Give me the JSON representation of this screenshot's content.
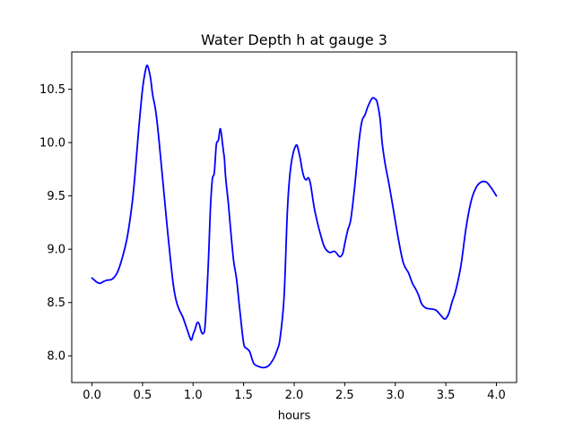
{
  "chart_data": {
    "type": "line",
    "title": "Water Depth h at gauge 3",
    "xlabel": "hours",
    "ylabel": "",
    "xlim": [
      -0.2,
      4.2
    ],
    "ylim": [
      7.75,
      10.85
    ],
    "xticks": [
      0.0,
      0.5,
      1.0,
      1.5,
      2.0,
      2.5,
      3.0,
      3.5,
      4.0
    ],
    "xtick_labels": [
      "0.0",
      "0.5",
      "1.0",
      "1.5",
      "2.0",
      "2.5",
      "3.0",
      "3.5",
      "4.0"
    ],
    "yticks": [
      8.0,
      8.5,
      9.0,
      9.5,
      10.0,
      10.5
    ],
    "ytick_labels": [
      "8.0",
      "8.5",
      "9.0",
      "9.5",
      "10.0",
      "10.5"
    ],
    "grid": false,
    "legend": "none",
    "series": [
      {
        "color": "#0000ff",
        "x": [
          0.0,
          0.05,
          0.08,
          0.12,
          0.15,
          0.2,
          0.25,
          0.3,
          0.35,
          0.4,
          0.43,
          0.46,
          0.5,
          0.53,
          0.55,
          0.58,
          0.6,
          0.63,
          0.66,
          0.7,
          0.75,
          0.8,
          0.83,
          0.86,
          0.9,
          0.94,
          0.98,
          1.0,
          1.02,
          1.04,
          1.06,
          1.08,
          1.1,
          1.12,
          1.15,
          1.17,
          1.19,
          1.21,
          1.23,
          1.25,
          1.27,
          1.29,
          1.3,
          1.31,
          1.32,
          1.33,
          1.35,
          1.37,
          1.4,
          1.43,
          1.46,
          1.5,
          1.53,
          1.56,
          1.6,
          1.65,
          1.7,
          1.75,
          1.8,
          1.83,
          1.86,
          1.9,
          1.93,
          1.95,
          1.97,
          1.99,
          2.01,
          2.03,
          2.06,
          2.08,
          2.1,
          2.12,
          2.14,
          2.16,
          2.18,
          2.2,
          2.23,
          2.26,
          2.3,
          2.35,
          2.4,
          2.45,
          2.48,
          2.5,
          2.53,
          2.56,
          2.6,
          2.64,
          2.67,
          2.7,
          2.73,
          2.76,
          2.78,
          2.8,
          2.82,
          2.85,
          2.87,
          2.9,
          2.94,
          2.98,
          3.03,
          3.08,
          3.13,
          3.17,
          3.2,
          3.23,
          3.26,
          3.3,
          3.35,
          3.4,
          3.45,
          3.48,
          3.5,
          3.53,
          3.56,
          3.6,
          3.65,
          3.7,
          3.75,
          3.8,
          3.85,
          3.9,
          3.93,
          3.96,
          4.0
        ],
        "y": [
          8.73,
          8.69,
          8.68,
          8.7,
          8.71,
          8.72,
          8.78,
          8.92,
          9.12,
          9.45,
          9.75,
          10.1,
          10.5,
          10.68,
          10.72,
          10.6,
          10.45,
          10.3,
          10.05,
          9.65,
          9.15,
          8.7,
          8.53,
          8.44,
          8.36,
          8.25,
          8.15,
          8.2,
          8.25,
          8.31,
          8.3,
          8.23,
          8.21,
          8.3,
          8.85,
          9.35,
          9.65,
          9.72,
          9.98,
          10.02,
          10.13,
          10.0,
          9.92,
          9.85,
          9.7,
          9.6,
          9.42,
          9.2,
          8.9,
          8.72,
          8.45,
          8.12,
          8.07,
          8.04,
          7.93,
          7.9,
          7.89,
          7.91,
          7.98,
          8.05,
          8.16,
          8.55,
          9.3,
          9.62,
          9.8,
          9.9,
          9.96,
          9.97,
          9.85,
          9.74,
          9.67,
          9.65,
          9.67,
          9.62,
          9.5,
          9.38,
          9.25,
          9.14,
          9.02,
          8.97,
          8.98,
          8.93,
          8.96,
          9.05,
          9.18,
          9.28,
          9.6,
          10.0,
          10.2,
          10.26,
          10.34,
          10.4,
          10.42,
          10.41,
          10.38,
          10.22,
          10.0,
          9.8,
          9.6,
          9.38,
          9.1,
          8.87,
          8.78,
          8.68,
          8.63,
          8.57,
          8.49,
          8.45,
          8.44,
          8.43,
          8.38,
          8.35,
          8.35,
          8.4,
          8.5,
          8.62,
          8.85,
          9.2,
          9.45,
          9.58,
          9.63,
          9.63,
          9.6,
          9.56,
          9.5
        ]
      }
    ]
  }
}
